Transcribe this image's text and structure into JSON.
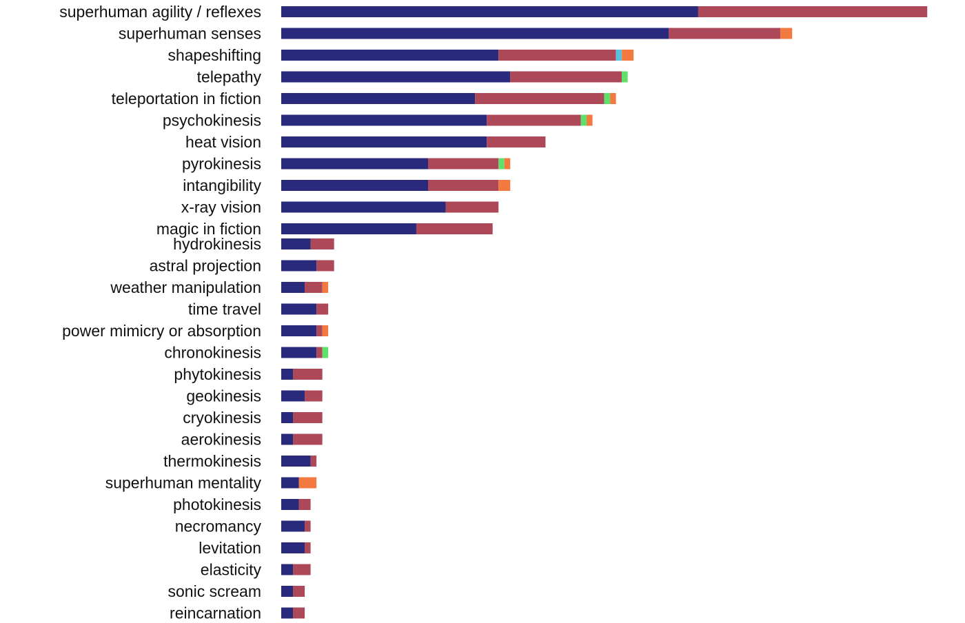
{
  "chart_data": {
    "type": "bar",
    "orientation": "horizontal",
    "stacked": true,
    "title": "",
    "xlabel": "",
    "ylabel": "",
    "grid": false,
    "xlim": [
      0,
      112
    ],
    "colors": {
      "series1": "#2a2a7c",
      "series2": "#ad4858",
      "series3": "#5bc0de",
      "series4": "#5fe06a",
      "series5": "#f27a41"
    },
    "categories": [
      "superhuman agility / reflexes",
      "superhuman senses",
      "shapeshifting",
      "telepathy",
      "teleportation in fiction",
      "psychokinesis",
      "heat vision",
      "pyrokinesis",
      "intangibility",
      "x-ray vision",
      "magic in fiction",
      "hydrokinesis",
      "astral projection",
      "weather manipulation",
      "time travel",
      "power mimicry or absorption",
      "chronokinesis",
      "phytokinesis",
      "geokinesis",
      "cryokinesis",
      "aerokinesis",
      "thermokinesis",
      "superhuman mentality",
      "photokinesis",
      "necromancy",
      "levitation",
      "elasticity",
      "sonic scream",
      "reincarnation"
    ],
    "series": [
      {
        "name": "series1",
        "values": [
          71,
          66,
          37,
          39,
          33,
          35,
          35,
          25,
          25,
          28,
          23,
          5,
          6,
          4,
          6,
          6,
          6,
          2,
          4,
          2,
          2,
          5,
          3,
          3,
          4,
          4,
          2,
          2,
          2
        ]
      },
      {
        "name": "series2",
        "values": [
          39,
          19,
          20,
          19,
          22,
          16,
          10,
          12,
          12,
          9,
          13,
          4,
          3,
          3,
          2,
          1,
          1,
          5,
          3,
          5,
          5,
          1,
          0,
          2,
          1,
          1,
          3,
          2,
          2
        ]
      },
      {
        "name": "series3",
        "values": [
          0,
          0,
          1,
          0,
          0,
          0,
          0,
          0,
          0,
          0,
          0,
          0,
          0,
          0,
          0,
          0,
          0,
          0,
          0,
          0,
          0,
          0,
          0,
          0,
          0,
          0,
          0,
          0,
          0
        ]
      },
      {
        "name": "series4",
        "values": [
          0,
          0,
          0,
          1,
          1,
          1,
          0,
          1,
          0,
          0,
          0,
          0,
          0,
          0,
          0,
          0,
          1,
          0,
          0,
          0,
          0,
          0,
          0,
          0,
          0,
          0,
          0,
          0,
          0
        ]
      },
      {
        "name": "series5",
        "values": [
          0,
          2,
          2,
          0,
          1,
          1,
          0,
          1,
          2,
          0,
          0,
          0,
          0,
          1,
          0,
          1,
          0,
          0,
          0,
          0,
          0,
          0,
          3,
          0,
          0,
          0,
          0,
          0,
          0
        ]
      }
    ]
  }
}
